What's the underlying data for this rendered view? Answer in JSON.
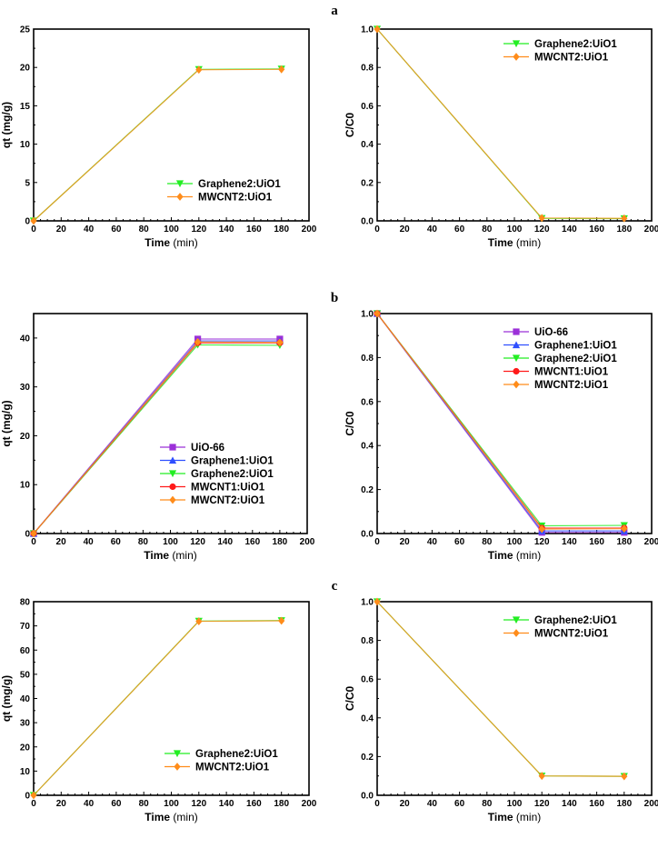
{
  "series_styles": {
    "UiO-66": {
      "color": "#9b30d8",
      "marker": "square"
    },
    "Graphene1:UiO1": {
      "color": "#2f4fff",
      "marker": "triangle-up"
    },
    "Graphene2:UiO1": {
      "color": "#22ee22",
      "marker": "triangle-down"
    },
    "MWCNT1:UiO1": {
      "color": "#ff1a1a",
      "marker": "circle"
    },
    "MWCNT2:UiO1": {
      "color": "#ff8c1a",
      "marker": "diamond"
    }
  },
  "chart_data": [
    {
      "panel": "a",
      "type": "line",
      "xlabel_bold": "Time",
      "xlabel_unit": "(min)",
      "ylabel": "qt (mg/g)",
      "xlim": [
        0,
        200
      ],
      "ylim": [
        0,
        25
      ],
      "xticks": [
        0,
        20,
        40,
        60,
        80,
        100,
        120,
        140,
        160,
        180,
        200
      ],
      "yticks": [
        0,
        5,
        10,
        15,
        20,
        25
      ],
      "legend": "center-right",
      "x": [
        0,
        120,
        180
      ],
      "series": [
        {
          "name": "Graphene2:UiO1",
          "values": [
            0,
            19.75,
            19.8
          ]
        },
        {
          "name": "MWCNT2:UiO1",
          "values": [
            0,
            19.7,
            19.75
          ]
        }
      ]
    },
    {
      "panel": "a",
      "type": "line",
      "xlabel_bold": "Time",
      "xlabel_unit": "(min)",
      "ylabel": "C/C0",
      "xlim": [
        0,
        200
      ],
      "ylim": [
        0,
        1
      ],
      "xticks": [
        0,
        20,
        40,
        60,
        80,
        100,
        120,
        140,
        160,
        180,
        200
      ],
      "yticks": [
        0.0,
        0.2,
        0.4,
        0.6,
        0.8,
        1.0
      ],
      "legend": "top-right",
      "x": [
        0,
        120,
        180
      ],
      "series": [
        {
          "name": "Graphene2:UiO1",
          "values": [
            1,
            0.013,
            0.012
          ]
        },
        {
          "name": "MWCNT2:UiO1",
          "values": [
            1,
            0.015,
            0.013
          ]
        }
      ]
    },
    {
      "panel": "b",
      "type": "line",
      "xlabel_bold": "Time",
      "xlabel_unit": "(min)",
      "ylabel": "qt (mg/g)",
      "xlim": [
        0,
        200
      ],
      "ylim": [
        0,
        45
      ],
      "xticks": [
        0,
        20,
        40,
        60,
        80,
        100,
        120,
        140,
        160,
        180,
        200
      ],
      "yticks": [
        0,
        10,
        20,
        30,
        40
      ],
      "legend": "center-right",
      "x": [
        0,
        120,
        180
      ],
      "series": [
        {
          "name": "UiO-66",
          "values": [
            0,
            39.8,
            39.8
          ]
        },
        {
          "name": "Graphene1:UiO1",
          "values": [
            0,
            39.4,
            39.4
          ]
        },
        {
          "name": "Graphene2:UiO1",
          "values": [
            0,
            38.6,
            38.5
          ]
        },
        {
          "name": "MWCNT1:UiO1",
          "values": [
            0,
            39.0,
            39.0
          ]
        },
        {
          "name": "MWCNT2:UiO1",
          "values": [
            0,
            39.2,
            39.1
          ]
        }
      ]
    },
    {
      "panel": "b",
      "type": "line",
      "xlabel_bold": "Time",
      "xlabel_unit": "(min)",
      "ylabel": "C/C0",
      "xlim": [
        0,
        200
      ],
      "ylim": [
        0,
        1
      ],
      "xticks": [
        0,
        20,
        40,
        60,
        80,
        100,
        120,
        140,
        160,
        180,
        200
      ],
      "yticks": [
        0.0,
        0.2,
        0.4,
        0.6,
        0.8,
        1.0
      ],
      "legend": "top-right",
      "x": [
        0,
        120,
        180
      ],
      "series": [
        {
          "name": "UiO-66",
          "values": [
            1,
            0.005,
            0.005
          ]
        },
        {
          "name": "Graphene1:UiO1",
          "values": [
            1,
            0.012,
            0.012
          ]
        },
        {
          "name": "Graphene2:UiO1",
          "values": [
            1,
            0.035,
            0.037
          ]
        },
        {
          "name": "MWCNT1:UiO1",
          "values": [
            1,
            0.025,
            0.025
          ]
        },
        {
          "name": "MWCNT2:UiO1",
          "values": [
            1,
            0.02,
            0.022
          ]
        }
      ]
    },
    {
      "panel": "c",
      "type": "line",
      "xlabel_bold": "Time",
      "xlabel_unit": "(min)",
      "ylabel": "qt (mg/g)",
      "xlim": [
        0,
        200
      ],
      "ylim": [
        0,
        80
      ],
      "xticks": [
        0,
        20,
        40,
        60,
        80,
        100,
        120,
        140,
        160,
        180,
        200
      ],
      "yticks": [
        0,
        10,
        20,
        30,
        40,
        50,
        60,
        70,
        80
      ],
      "legend": "center-right",
      "x": [
        0,
        120,
        180
      ],
      "series": [
        {
          "name": "Graphene2:UiO1",
          "values": [
            0,
            72.0,
            72.2
          ]
        },
        {
          "name": "MWCNT2:UiO1",
          "values": [
            0,
            71.9,
            72.1
          ]
        }
      ]
    },
    {
      "panel": "c",
      "type": "line",
      "xlabel_bold": "Time",
      "xlabel_unit": "(min)",
      "ylabel": "C/C0",
      "xlim": [
        0,
        200
      ],
      "ylim": [
        0,
        1
      ],
      "xticks": [
        0,
        20,
        40,
        60,
        80,
        100,
        120,
        140,
        160,
        180,
        200
      ],
      "yticks": [
        0.0,
        0.2,
        0.4,
        0.6,
        0.8,
        1.0
      ],
      "legend": "top-right",
      "x": [
        0,
        120,
        180
      ],
      "series": [
        {
          "name": "Graphene2:UiO1",
          "values": [
            1,
            0.1,
            0.098
          ]
        },
        {
          "name": "MWCNT2:UiO1",
          "values": [
            1,
            0.1,
            0.098
          ]
        }
      ]
    }
  ]
}
